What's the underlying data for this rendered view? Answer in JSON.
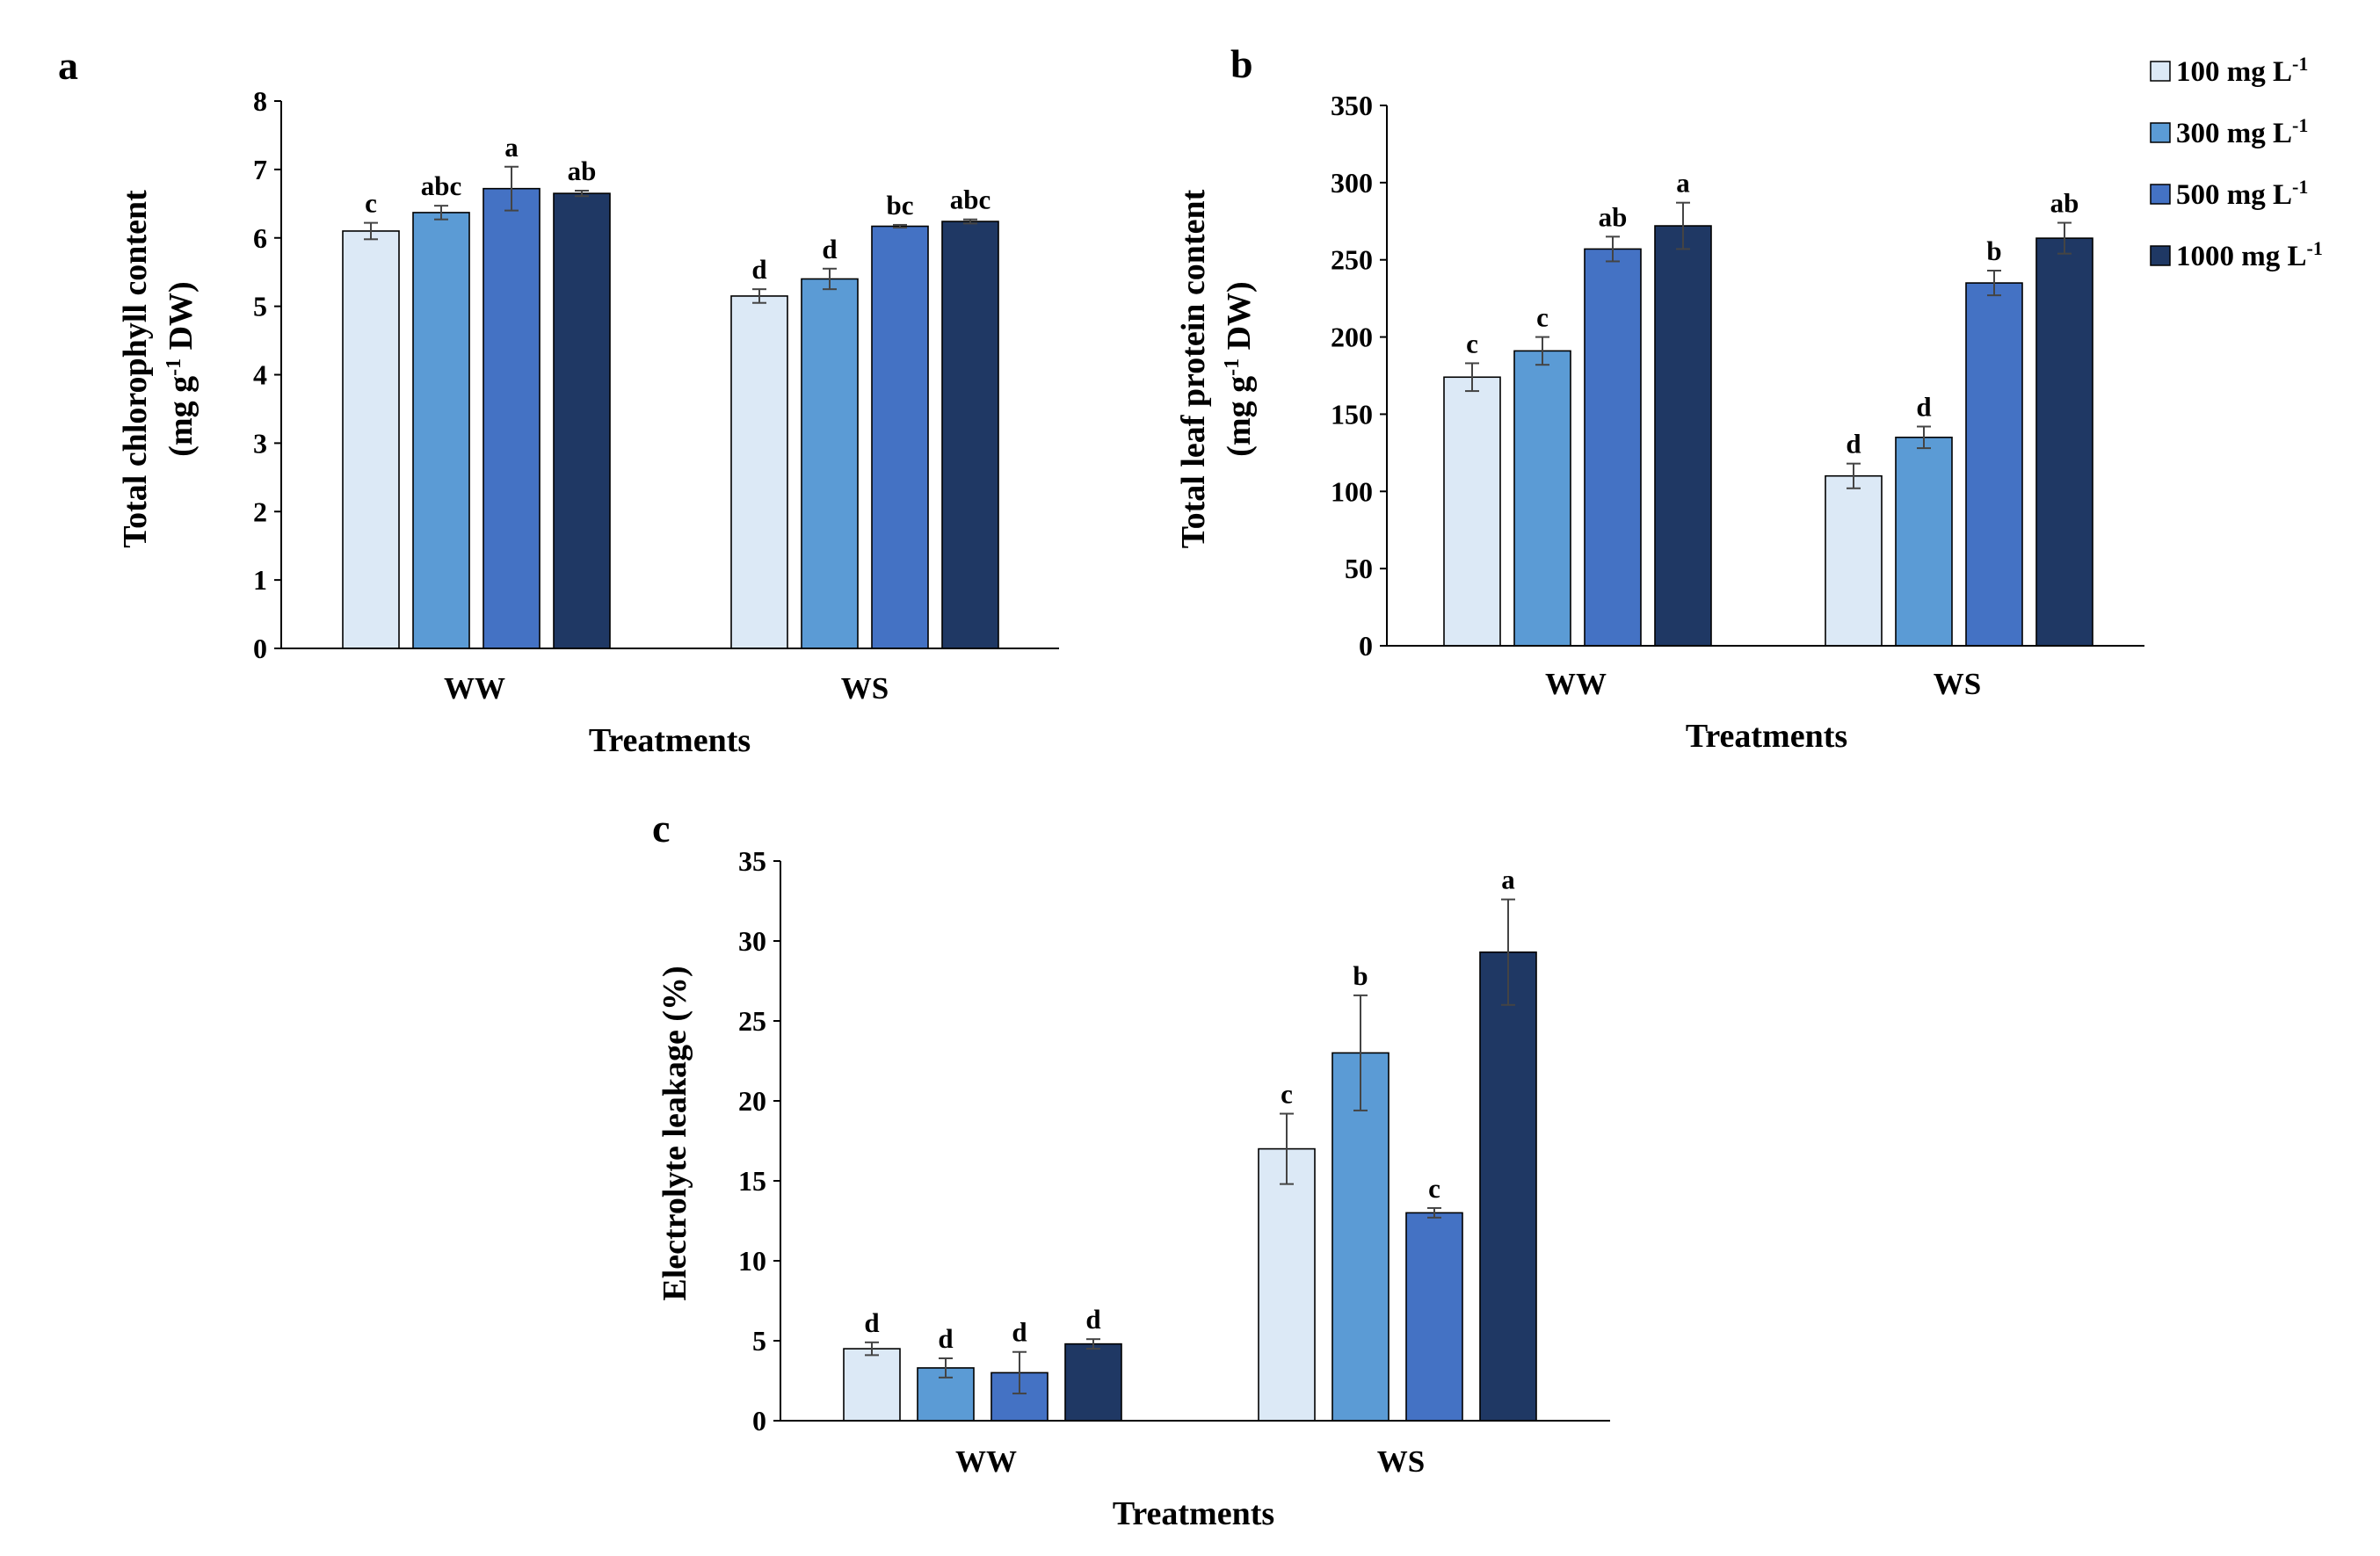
{
  "legend": {
    "entries": [
      {
        "prefix": "100 mg L",
        "sup": "-1",
        "color": "#dce9f6"
      },
      {
        "prefix": "300 mg L",
        "sup": "-1",
        "color": "#5b9bd5"
      },
      {
        "prefix": "500 mg L",
        "sup": "-1",
        "color": "#4472c4"
      },
      {
        "prefix": "1000 mg L",
        "sup": "-1",
        "color": "#1f3864"
      }
    ]
  },
  "chart_data": [
    {
      "id": "a",
      "panel_letter": "a",
      "type": "bar",
      "categories": [
        "WW",
        "WS"
      ],
      "xlabel": "Treatments",
      "ylabel_line1": "Total chlorophyll content",
      "ylabel_line2_prefix": "(mg g",
      "ylabel_line2_sup": "-1",
      "ylabel_line2_suffix": " DW)",
      "ylim": [
        0,
        8
      ],
      "yticks": [
        0,
        1,
        2,
        3,
        4,
        5,
        6,
        7,
        8
      ],
      "series": [
        {
          "name": "100 mg L-1",
          "values": [
            6.1,
            5.15
          ],
          "errors": [
            0.12,
            0.1
          ],
          "letters": [
            "c",
            "d"
          ]
        },
        {
          "name": "300 mg L-1",
          "values": [
            6.37,
            5.4
          ],
          "errors": [
            0.1,
            0.15
          ],
          "letters": [
            "abc",
            "d"
          ]
        },
        {
          "name": "500 mg L-1",
          "values": [
            6.72,
            6.17
          ],
          "errors": [
            0.32,
            0.02
          ],
          "letters": [
            "a",
            "bc"
          ]
        },
        {
          "name": "1000 mg L-1",
          "values": [
            6.65,
            6.24
          ],
          "errors": [
            0.04,
            0.03
          ],
          "letters": [
            "ab",
            "abc"
          ]
        }
      ]
    },
    {
      "id": "b",
      "panel_letter": "b",
      "type": "bar",
      "categories": [
        "WW",
        "WS"
      ],
      "xlabel": "Treatments",
      "ylabel_line1": "Total leaf protein content",
      "ylabel_line2_prefix": "(mg g",
      "ylabel_line2_sup": "-1",
      "ylabel_line2_suffix": " DW)",
      "ylim": [
        0,
        350
      ],
      "yticks": [
        0,
        50,
        100,
        150,
        200,
        250,
        300,
        350
      ],
      "series": [
        {
          "name": "100 mg L-1",
          "values": [
            174,
            110
          ],
          "errors": [
            9,
            8
          ],
          "letters": [
            "c",
            "d"
          ]
        },
        {
          "name": "300 mg L-1",
          "values": [
            191,
            135
          ],
          "errors": [
            9,
            7
          ],
          "letters": [
            "c",
            "d"
          ]
        },
        {
          "name": "500 mg L-1",
          "values": [
            257,
            235
          ],
          "errors": [
            8,
            8
          ],
          "letters": [
            "ab",
            "b"
          ]
        },
        {
          "name": "1000 mg L-1",
          "values": [
            272,
            264
          ],
          "errors": [
            15,
            10
          ],
          "letters": [
            "a",
            "ab"
          ]
        }
      ]
    },
    {
      "id": "c",
      "panel_letter": "c",
      "type": "bar",
      "categories": [
        "WW",
        "WS"
      ],
      "xlabel": "Treatments",
      "ylabel_line1": "Electrolyte leakage (%)",
      "ylim": [
        0,
        35
      ],
      "yticks": [
        0,
        5,
        10,
        15,
        20,
        25,
        30,
        35
      ],
      "series": [
        {
          "name": "100 mg L-1",
          "values": [
            4.5,
            17.0
          ],
          "errors": [
            0.4,
            2.2
          ],
          "letters": [
            "d",
            "c"
          ]
        },
        {
          "name": "300 mg L-1",
          "values": [
            3.3,
            23.0
          ],
          "errors": [
            0.6,
            3.6
          ],
          "letters": [
            "d",
            "b"
          ]
        },
        {
          "name": "500 mg L-1",
          "values": [
            3.0,
            13.0
          ],
          "errors": [
            1.3,
            0.3
          ],
          "letters": [
            "d",
            "c"
          ]
        },
        {
          "name": "1000 mg L-1",
          "values": [
            4.8,
            29.3
          ],
          "errors": [
            0.3,
            3.3
          ],
          "letters": [
            "d",
            "a"
          ]
        }
      ]
    }
  ]
}
